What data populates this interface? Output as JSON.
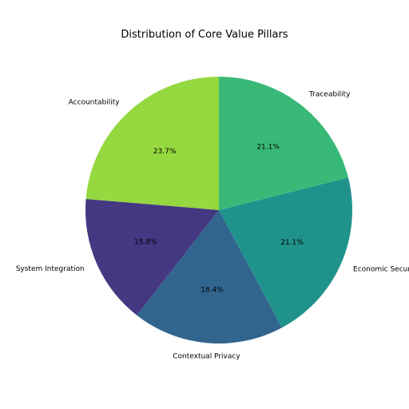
{
  "chart_data": {
    "type": "pie",
    "title": "Distribution of Core Value Pillars",
    "start_angle_deg": 90,
    "direction": "counterclockwise",
    "slices": [
      {
        "label": "Accountability",
        "percent": 23.7,
        "pct_label": "23.7%",
        "color": "#95d840"
      },
      {
        "label": "System Integration",
        "percent": 15.8,
        "pct_label": "15.8%",
        "color": "#453882"
      },
      {
        "label": "Contextual Privacy",
        "percent": 18.4,
        "pct_label": "18.4%",
        "color": "#32658e"
      },
      {
        "label": "Economic Security",
        "percent": 21.1,
        "pct_label": "21.1%",
        "color": "#20928c"
      },
      {
        "label": "Traceability",
        "percent": 21.1,
        "pct_label": "21.1%",
        "color": "#38b977"
      }
    ]
  }
}
